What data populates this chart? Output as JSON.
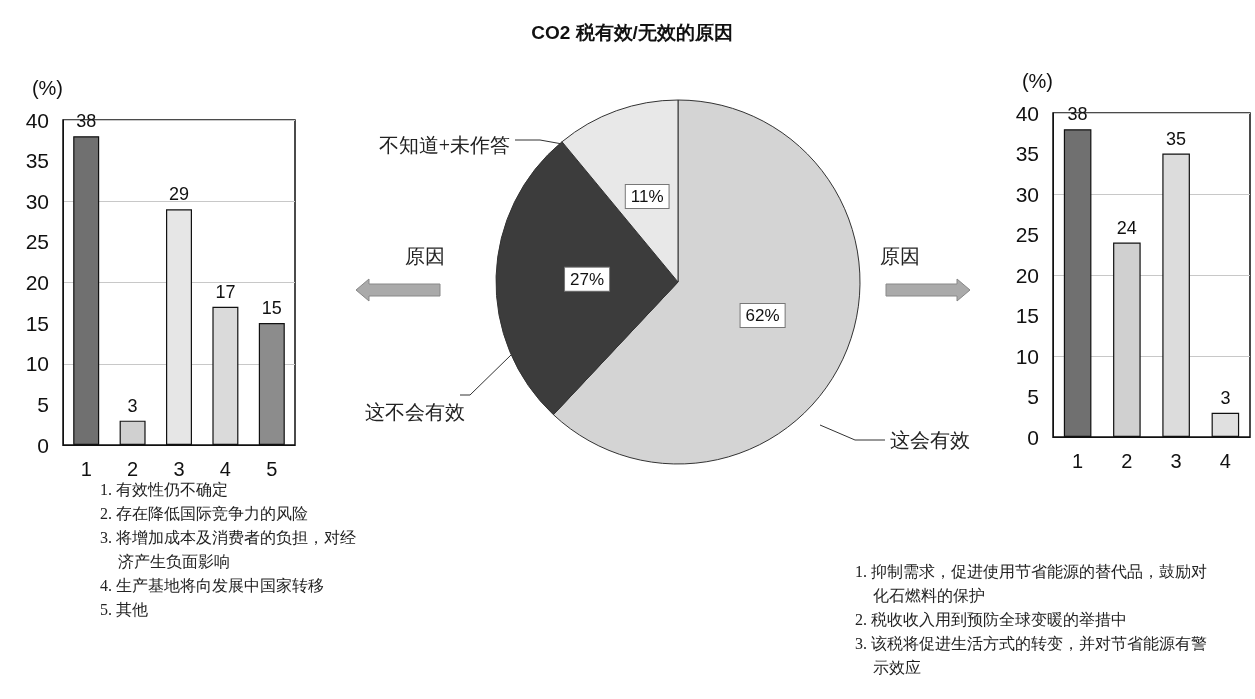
{
  "chart_data": [
    {
      "type": "bar",
      "ylabel": "(%)",
      "categories": [
        "1",
        "2",
        "3",
        "4",
        "5"
      ],
      "values": [
        38,
        3,
        29,
        17,
        15
      ],
      "colors": [
        "#707070",
        "#d0d0d0",
        "#e6e6e6",
        "#dadada",
        "#8c8c8c"
      ],
      "ylim": [
        0,
        40
      ],
      "yticks": [
        0,
        5,
        10,
        15,
        20,
        25,
        30,
        35,
        40
      ],
      "grid": "y",
      "data_labels": true,
      "annotations": [
        "1. 有效性仍不确定",
        "2. 存在降低国际竞争力的风险",
        "3. 将增加成本及消费者的负担，对经济产生负面影响",
        "4. 生产基地将向发展中国家转移",
        "5. 其他"
      ]
    },
    {
      "type": "pie",
      "title": "CO2 税有效/无效的原因",
      "categories": [
        "这会有效",
        "这不会有效",
        "不知道+未作答"
      ],
      "values": [
        62,
        27,
        11
      ],
      "colors": [
        "#d4d4d4",
        "#3c3c3c",
        "#e8e8e8"
      ],
      "value_labels": [
        "62%",
        "27%",
        "11%"
      ],
      "annotations": [
        "原因",
        "原因"
      ]
    },
    {
      "type": "bar",
      "ylabel": "(%)",
      "categories": [
        "1",
        "2",
        "3",
        "4"
      ],
      "values": [
        38,
        24,
        35,
        3
      ],
      "colors": [
        "#707070",
        "#d0d0d0",
        "#dcdcdc",
        "#e0e0e0"
      ],
      "ylim": [
        0,
        40
      ],
      "yticks": [
        0,
        5,
        10,
        15,
        20,
        25,
        30,
        35,
        40
      ],
      "grid": "y",
      "data_labels": true,
      "annotations": [
        "1. 抑制需求，促进使用节省能源的替代品，鼓励对化石燃料的保护",
        "2. 税收收入用到预防全球变暖的举措中",
        "3. 该税将促进生活方式的转变，并对节省能源有警示效应"
      ]
    }
  ]
}
